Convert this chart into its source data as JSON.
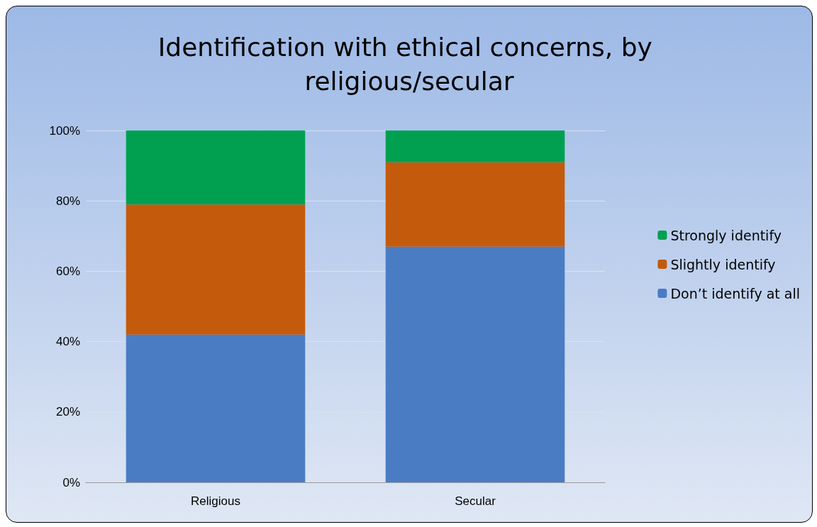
{
  "chart_data": {
    "type": "bar",
    "title": "Identification with ethical concerns, by religious/secular",
    "categories": [
      "Religious",
      "Secular"
    ],
    "stacked": true,
    "series": [
      {
        "name": "Don’t identify at all",
        "color": "#4a7cc4",
        "values": [
          42,
          67
        ]
      },
      {
        "name": "Slightly identify",
        "color": "#c45a0c",
        "values": [
          37,
          24
        ]
      },
      {
        "name": "Strongly identify",
        "color": "#00a050",
        "values": [
          21,
          9
        ]
      }
    ],
    "ylim": [
      0,
      100
    ],
    "yticks": [
      {
        "value": 0,
        "label": "0%"
      },
      {
        "value": 20,
        "label": "20%"
      },
      {
        "value": 40,
        "label": "40%"
      },
      {
        "value": 60,
        "label": "60%"
      },
      {
        "value": 80,
        "label": "80%"
      },
      {
        "value": 100,
        "label": "100%"
      }
    ],
    "grid": "y",
    "legend": "right"
  }
}
